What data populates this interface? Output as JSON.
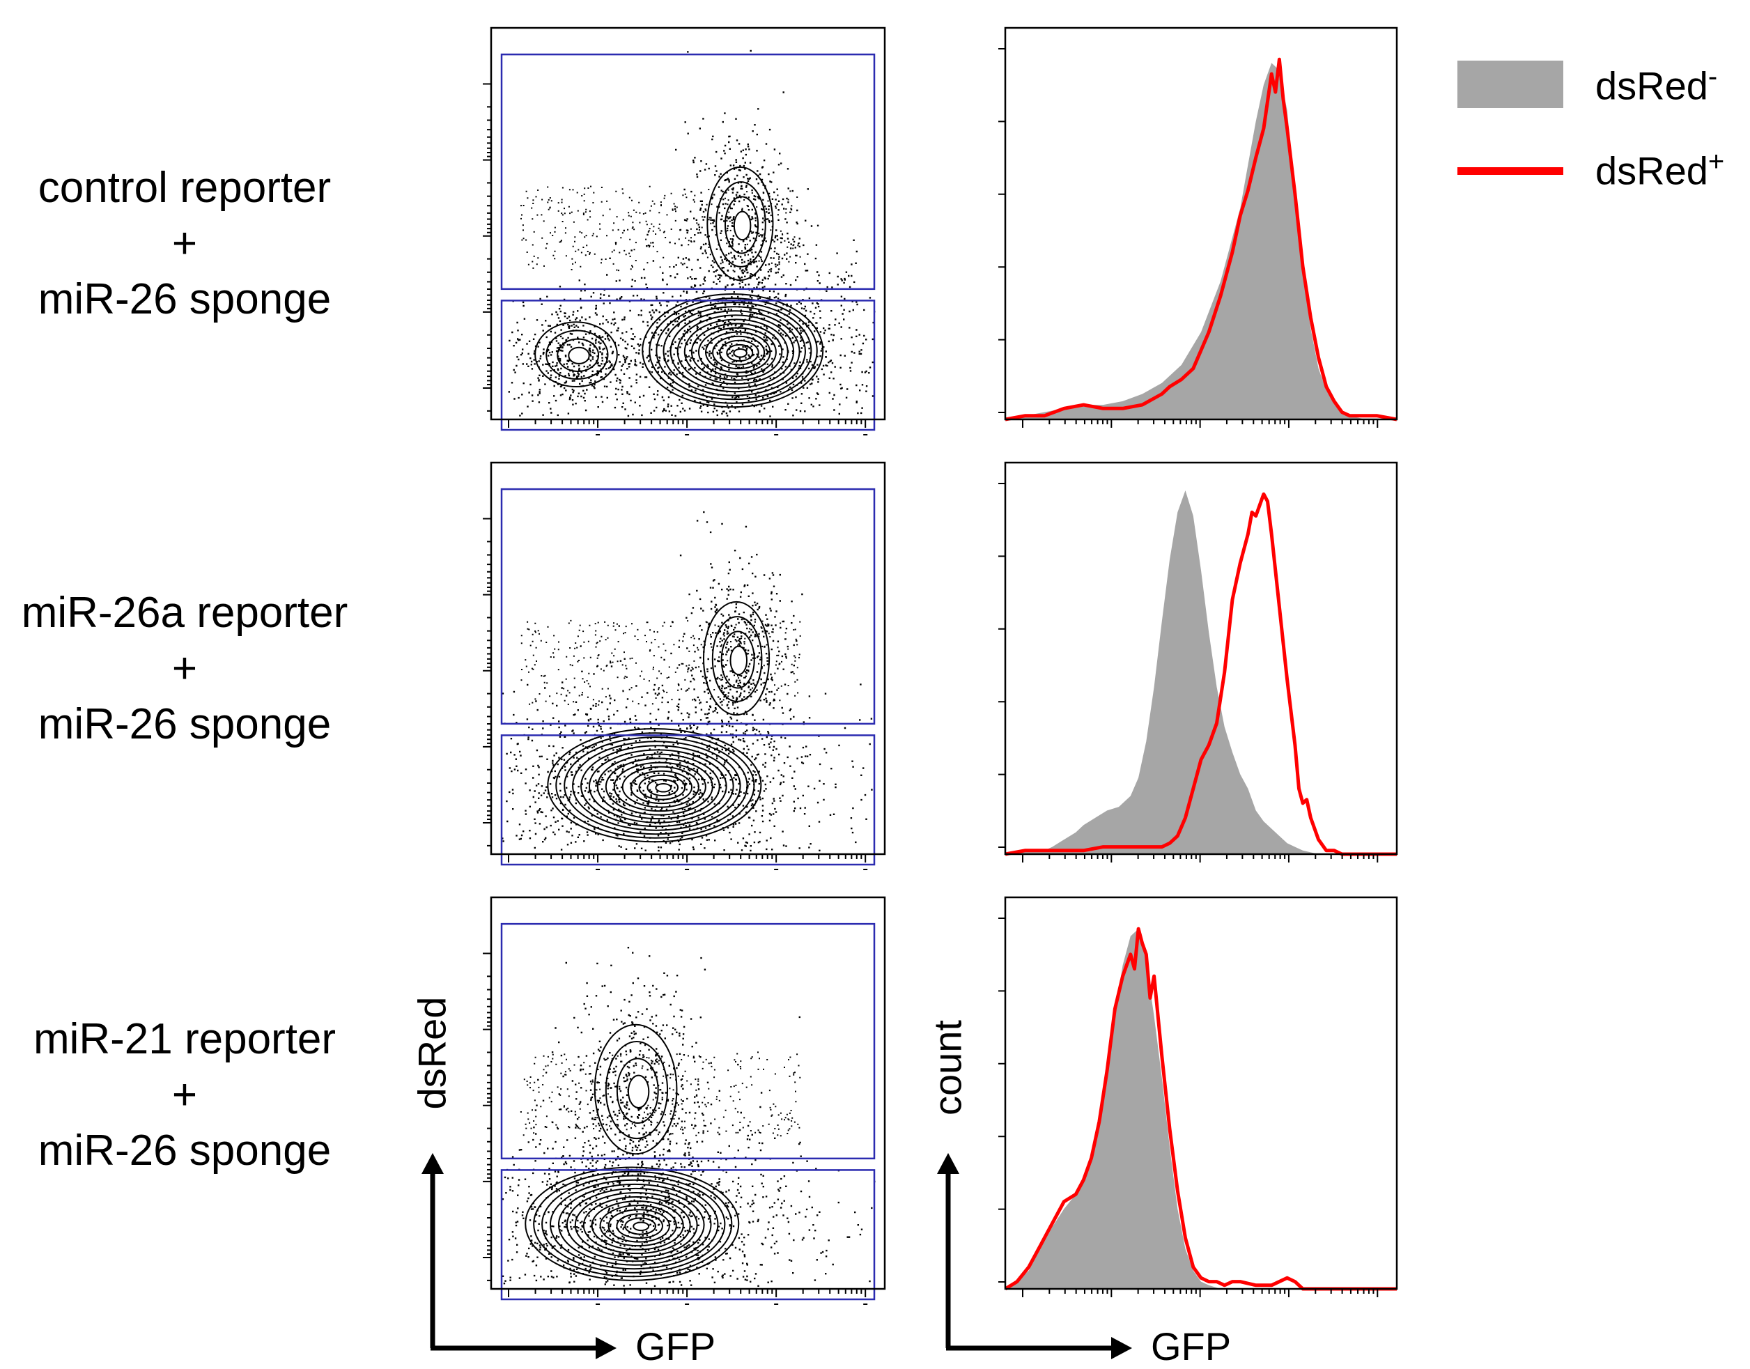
{
  "rows": [
    {
      "label": [
        "control reporter",
        "+",
        "miR-26 sponge"
      ]
    },
    {
      "label": [
        "miR-26a reporter",
        "+",
        "miR-26 sponge"
      ]
    },
    {
      "label": [
        "miR-21 reporter",
        "+",
        "miR-26 sponge"
      ]
    }
  ],
  "legend": {
    "negative": {
      "text": "dsRed",
      "sup": "-",
      "color": "#a6a6a6"
    },
    "positive": {
      "text": "dsRed",
      "sup": "+",
      "color": "#ff0000"
    }
  },
  "axes": {
    "contour_y": "dsRed",
    "contour_x": "GFP",
    "hist_y": "count",
    "hist_x": "GFP"
  },
  "colors": {
    "gate": "#2b2bb0",
    "filled": "#a6a6a6",
    "line": "#ff0000"
  },
  "chart_data": [
    {
      "type": "scatter",
      "panel": "contour",
      "row": 1,
      "xlabel": "GFP",
      "ylabel": "dsRed",
      "xlim": [
        0,
        100
      ],
      "ylim": [
        0,
        100
      ],
      "gates": [
        {
          "name": "dsRed+",
          "y": [
            33,
            94
          ]
        },
        {
          "name": "dsRed-",
          "y": [
            0,
            30
          ]
        }
      ],
      "populations": [
        {
          "name": "dsRed- main",
          "x": 62,
          "y": 17,
          "sx": 11,
          "sy": 7
        },
        {
          "name": "dsRed- low GFP",
          "x": 20,
          "y": 16,
          "sx": 5,
          "sy": 4
        },
        {
          "name": "dsRed+",
          "x": 64,
          "y": 50,
          "sx": 4,
          "sy": 7
        }
      ]
    },
    {
      "type": "scatter",
      "panel": "contour",
      "row": 2,
      "xlabel": "GFP",
      "ylabel": "dsRed",
      "xlim": [
        0,
        100
      ],
      "ylim": [
        0,
        100
      ],
      "gates": [
        {
          "name": "dsRed+",
          "y": [
            33,
            94
          ]
        },
        {
          "name": "dsRed-",
          "y": [
            0,
            30
          ]
        }
      ],
      "populations": [
        {
          "name": "dsRed- main",
          "x": 41,
          "y": 17,
          "sx": 13,
          "sy": 7
        },
        {
          "name": "dsRed+",
          "x": 63,
          "y": 50,
          "sx": 4,
          "sy": 7
        }
      ]
    },
    {
      "type": "scatter",
      "panel": "contour",
      "row": 3,
      "xlabel": "GFP",
      "ylabel": "dsRed",
      "xlim": [
        0,
        100
      ],
      "ylim": [
        0,
        100
      ],
      "gates": [
        {
          "name": "dsRed+",
          "y": [
            33,
            94
          ]
        },
        {
          "name": "dsRed-",
          "y": [
            0,
            30
          ]
        }
      ],
      "populations": [
        {
          "name": "dsRed- main",
          "x": 35,
          "y": 16,
          "sx": 13,
          "sy": 7
        },
        {
          "name": "dsRed+",
          "x": 36,
          "y": 51,
          "sx": 5,
          "sy": 8
        }
      ]
    },
    {
      "type": "area",
      "panel": "histogram",
      "row": 1,
      "xlabel": "GFP",
      "ylabel": "count",
      "xlim": [
        0,
        100
      ],
      "ylim": [
        0,
        100
      ],
      "series": [
        {
          "name": "dsRed-",
          "style": "filled",
          "x": [
            0,
            5,
            10,
            15,
            20,
            25,
            30,
            35,
            40,
            45,
            50,
            55,
            60,
            62,
            64,
            66,
            68,
            70,
            72,
            74,
            76,
            78,
            80,
            82,
            85,
            88,
            92,
            96,
            100
          ],
          "y": [
            0,
            1,
            2,
            3,
            4,
            4,
            5,
            7,
            10,
            15,
            24,
            38,
            58,
            70,
            82,
            92,
            98,
            96,
            85,
            62,
            40,
            25,
            14,
            8,
            3,
            1,
            0,
            0,
            0
          ]
        },
        {
          "name": "dsRed+",
          "style": "line",
          "x": [
            0,
            5,
            10,
            15,
            20,
            25,
            30,
            35,
            40,
            42,
            45,
            48,
            50,
            52,
            55,
            58,
            60,
            62,
            64,
            66,
            68,
            69,
            70,
            71,
            72,
            74,
            76,
            78,
            80,
            82,
            84,
            86,
            88,
            90,
            95,
            100
          ],
          "y": [
            0,
            1,
            1,
            3,
            4,
            3,
            3,
            4,
            7,
            9,
            11,
            14,
            19,
            24,
            34,
            46,
            56,
            63,
            72,
            80,
            95,
            90,
            99,
            88,
            80,
            62,
            42,
            28,
            17,
            9,
            5,
            2,
            1,
            1,
            1,
            0
          ]
        }
      ]
    },
    {
      "type": "area",
      "panel": "histogram",
      "row": 2,
      "xlabel": "GFP",
      "ylabel": "count",
      "xlim": [
        0,
        100
      ],
      "ylim": [
        0,
        100
      ],
      "series": [
        {
          "name": "dsRed-",
          "style": "filled",
          "x": [
            0,
            5,
            10,
            12,
            15,
            18,
            20,
            23,
            26,
            29,
            32,
            34,
            36,
            38,
            40,
            42,
            44,
            46,
            48,
            50,
            52,
            54,
            56,
            58,
            60,
            62,
            64,
            66,
            68,
            70,
            72,
            74,
            76,
            80,
            85,
            90,
            95,
            100
          ],
          "y": [
            0,
            1,
            1,
            2,
            4,
            6,
            8,
            10,
            12,
            13,
            16,
            21,
            31,
            46,
            64,
            81,
            94,
            100,
            93,
            78,
            61,
            46,
            35,
            28,
            22,
            18,
            12,
            9,
            7,
            5,
            3,
            2,
            1,
            0,
            0,
            0,
            0,
            0
          ]
        },
        {
          "name": "dsRed+",
          "style": "line",
          "x": [
            0,
            5,
            10,
            15,
            20,
            25,
            30,
            35,
            40,
            42,
            44,
            46,
            48,
            50,
            52,
            54,
            56,
            58,
            60,
            62,
            63,
            64,
            65,
            66,
            67,
            68,
            70,
            72,
            74,
            75,
            76,
            77,
            78,
            80,
            82,
            84,
            86,
            90,
            100
          ],
          "y": [
            0,
            1,
            1,
            1,
            1,
            2,
            2,
            2,
            2,
            3,
            5,
            10,
            18,
            26,
            30,
            36,
            50,
            70,
            80,
            88,
            94,
            93,
            96,
            99,
            97,
            88,
            68,
            48,
            30,
            18,
            14,
            15,
            10,
            4,
            1,
            1,
            0,
            0,
            0
          ]
        }
      ]
    },
    {
      "type": "area",
      "panel": "histogram",
      "row": 3,
      "xlabel": "GFP",
      "ylabel": "count",
      "xlim": [
        0,
        100
      ],
      "ylim": [
        0,
        100
      ],
      "series": [
        {
          "name": "dsRed-",
          "style": "filled",
          "x": [
            0,
            3,
            6,
            9,
            12,
            15,
            18,
            20,
            22,
            24,
            26,
            28,
            30,
            32,
            34,
            36,
            38,
            40,
            42,
            44,
            46,
            48,
            50,
            52,
            55,
            58,
            62,
            66,
            70,
            80,
            90,
            100
          ],
          "y": [
            0,
            2,
            5,
            11,
            17,
            22,
            26,
            30,
            35,
            45,
            60,
            76,
            89,
            97,
            99,
            90,
            75,
            58,
            39,
            22,
            11,
            5,
            2,
            1,
            0,
            0,
            0,
            0,
            0,
            0,
            0,
            0
          ]
        },
        {
          "name": "dsRed+",
          "style": "line",
          "x": [
            0,
            3,
            6,
            9,
            12,
            15,
            18,
            20,
            22,
            24,
            26,
            28,
            30,
            32,
            33,
            34,
            35,
            36,
            37,
            38,
            40,
            42,
            44,
            46,
            48,
            50,
            52,
            54,
            56,
            58,
            60,
            64,
            68,
            72,
            74,
            76,
            80,
            90,
            100
          ],
          "y": [
            0,
            2,
            6,
            12,
            18,
            24,
            26,
            30,
            36,
            46,
            60,
            77,
            86,
            92,
            88,
            99,
            95,
            92,
            80,
            86,
            64,
            44,
            27,
            14,
            6,
            3,
            2,
            2,
            1,
            2,
            2,
            1,
            1,
            3,
            2,
            0,
            0,
            0,
            0
          ]
        }
      ]
    }
  ]
}
